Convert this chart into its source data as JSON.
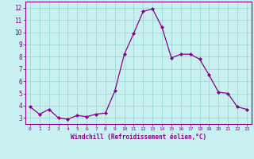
{
  "x": [
    0,
    1,
    2,
    3,
    4,
    5,
    6,
    7,
    8,
    9,
    10,
    11,
    12,
    13,
    14,
    15,
    16,
    17,
    18,
    19,
    20,
    21,
    22,
    23
  ],
  "y": [
    3.9,
    3.3,
    3.7,
    3.0,
    2.9,
    3.2,
    3.1,
    3.3,
    3.4,
    5.2,
    8.2,
    9.9,
    11.7,
    11.9,
    10.4,
    7.9,
    8.2,
    8.2,
    7.8,
    6.5,
    5.1,
    5.0,
    3.9,
    3.7
  ],
  "line_color": "#880088",
  "marker": "D",
  "marker_size": 2.0,
  "bg_color": "#c8f0f0",
  "grid_color": "#a0d8d8",
  "xlabel": "Windchill (Refroidissement éolien,°C)",
  "xlabel_color": "#880088",
  "xlim": [
    -0.5,
    23.5
  ],
  "ylim": [
    2.5,
    12.5
  ],
  "yticks": [
    3,
    4,
    5,
    6,
    7,
    8,
    9,
    10,
    11,
    12
  ],
  "xticks": [
    0,
    1,
    2,
    3,
    4,
    5,
    6,
    7,
    8,
    9,
    10,
    11,
    12,
    13,
    14,
    15,
    16,
    17,
    18,
    19,
    20,
    21,
    22,
    23
  ],
  "tick_label_color": "#880088",
  "spine_color": "#880088",
  "xaxis_line_color": "#880088"
}
